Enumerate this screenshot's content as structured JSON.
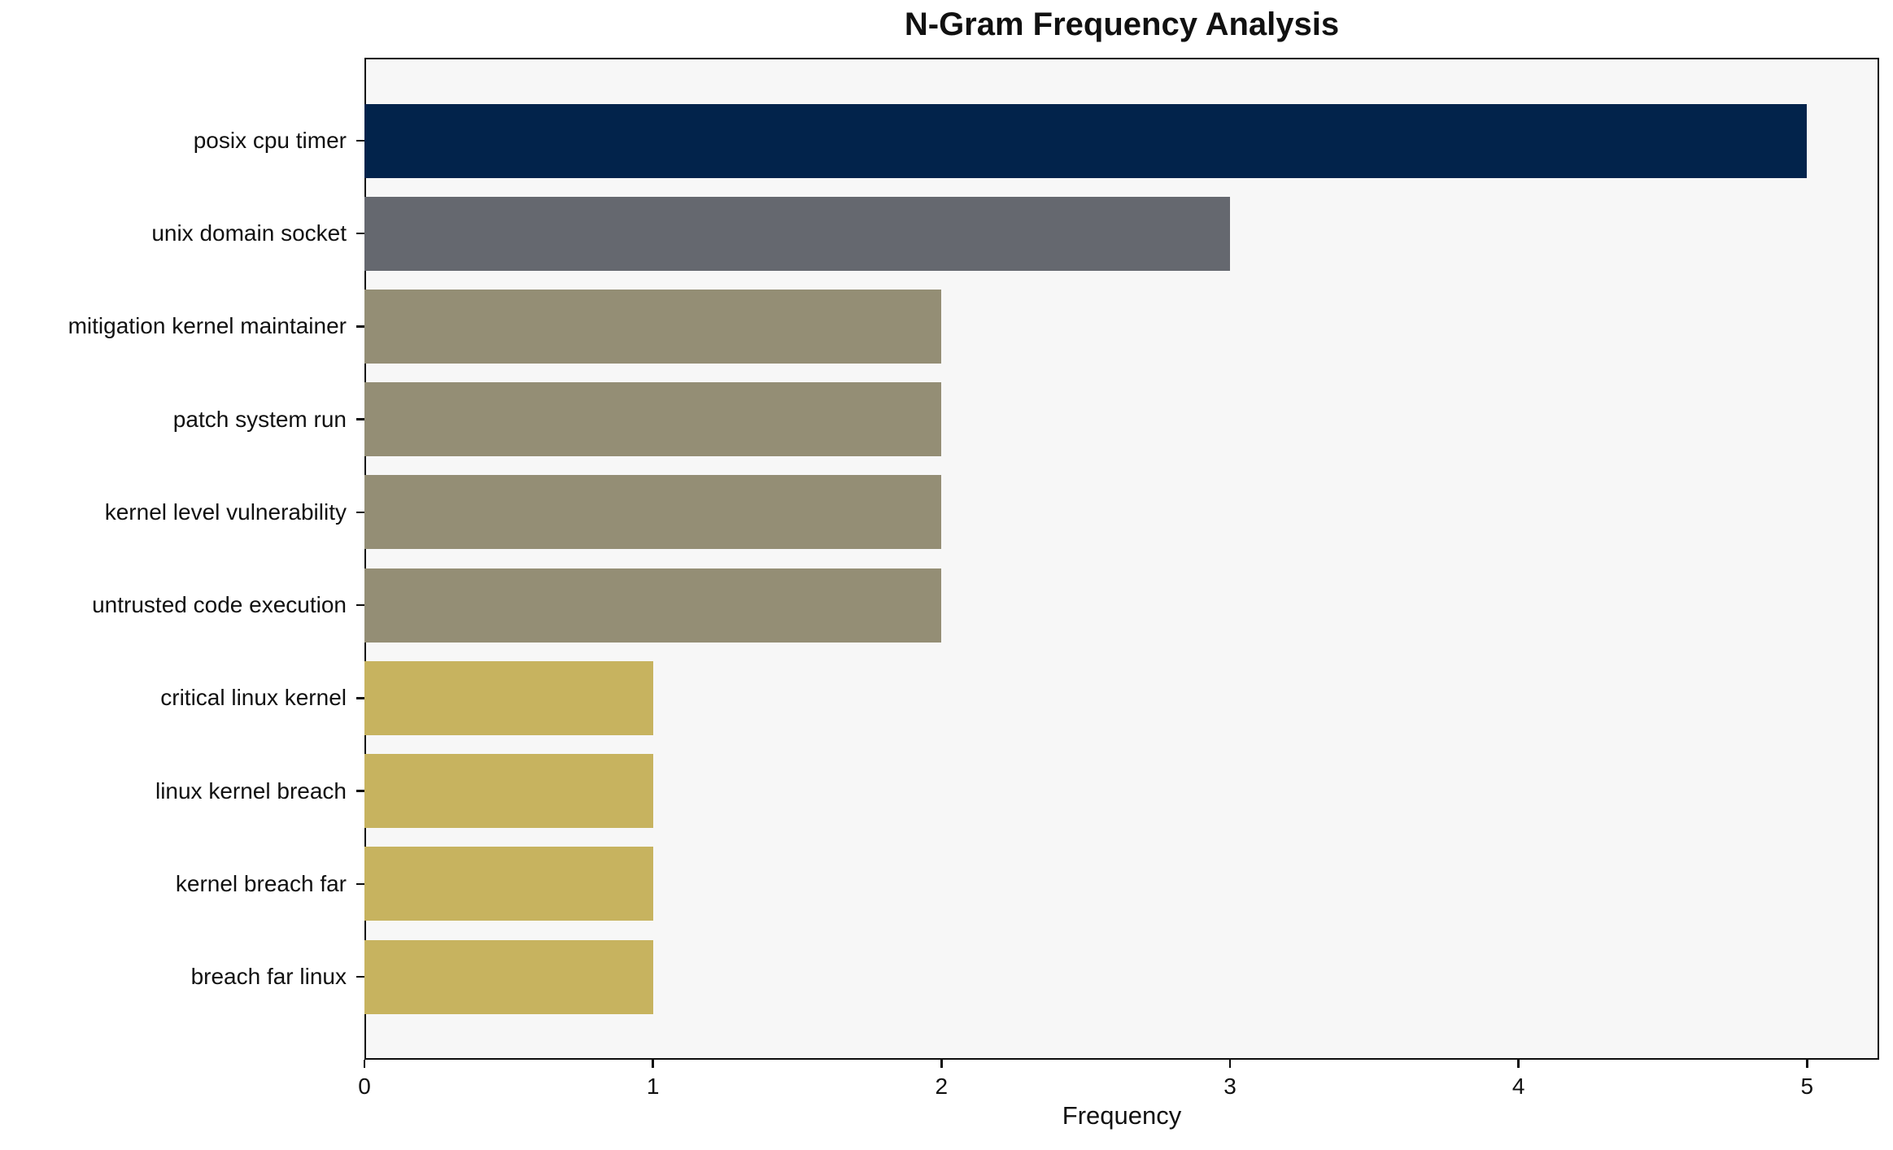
{
  "chart_data": {
    "type": "bar",
    "orientation": "horizontal",
    "title": "N-Gram Frequency Analysis",
    "xlabel": "Frequency",
    "ylabel": "",
    "categories": [
      "posix cpu timer",
      "unix domain socket",
      "mitigation kernel maintainer",
      "patch system run",
      "kernel level vulnerability",
      "untrusted code execution",
      "critical linux kernel",
      "linux kernel breach",
      "kernel breach far",
      "breach far linux"
    ],
    "values": [
      5,
      3,
      2,
      2,
      2,
      2,
      1,
      1,
      1,
      1
    ],
    "bar_colors": [
      "#02234b",
      "#65686f",
      "#948e75",
      "#948e75",
      "#948e75",
      "#948e75",
      "#c7b35f",
      "#c7b35f",
      "#c7b35f",
      "#c7b35f"
    ],
    "xlim": [
      0,
      5.25
    ],
    "xticks": [
      0,
      1,
      2,
      3,
      4,
      5
    ],
    "grid": false,
    "legend": null,
    "plot_background": "#f7f7f7",
    "page_background": "#ffffff",
    "axis_color": "#0d0d0d"
  }
}
